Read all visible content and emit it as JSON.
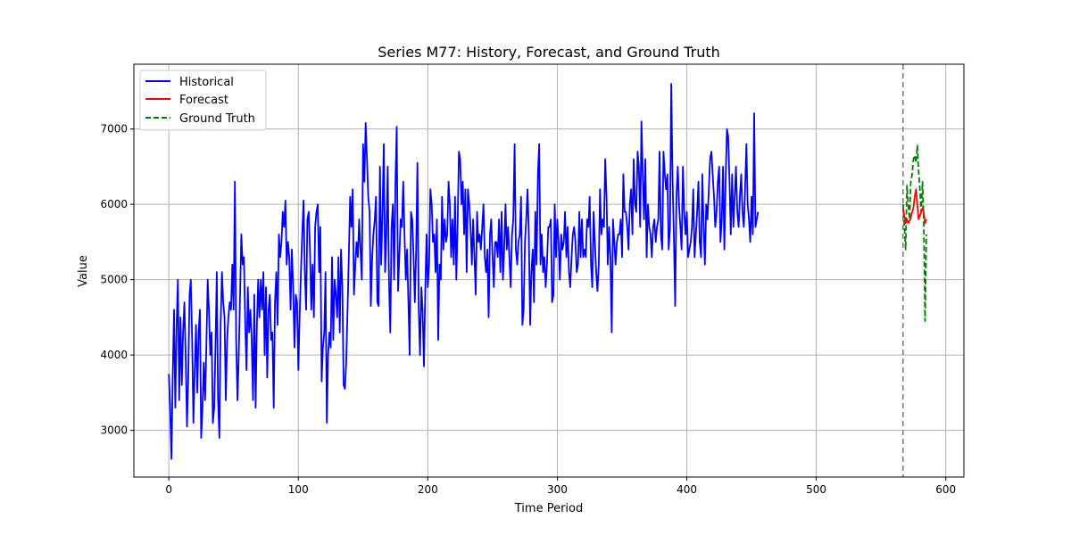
{
  "chart_data": {
    "type": "line",
    "title": "Series M77: History, Forecast, and Ground Truth",
    "xlabel": "Time Period",
    "ylabel": "Value",
    "xlim": [
      -27,
      614
    ],
    "ylim": [
      2380,
      7860
    ],
    "xticks": [
      0,
      100,
      200,
      300,
      400,
      500,
      600
    ],
    "yticks": [
      3000,
      4000,
      5000,
      6000,
      7000
    ],
    "grid": true,
    "legend_position": "top-left",
    "forecast_start": 567,
    "colors": {
      "historical": "#0000ff",
      "forecast": "#ff0000",
      "ground_truth": "#008000",
      "divider": "#808080",
      "grid": "#b0b0b0"
    },
    "series": [
      {
        "name": "Historical",
        "style": "solid",
        "color": "#0000ff",
        "x_start": 0,
        "values": [
          3750,
          3300,
          2620,
          3700,
          4600,
          3300,
          4400,
          5000,
          3400,
          4500,
          3600,
          4300,
          4700,
          4000,
          3050,
          3700,
          4800,
          5000,
          4200,
          3100,
          3800,
          4400,
          3500,
          4300,
          4600,
          2900,
          3300,
          3900,
          3400,
          4100,
          5000,
          4600,
          4000,
          4300,
          3100,
          3300,
          4100,
          5100,
          3400,
          2900,
          4400,
          5100,
          4700,
          4500,
          3400,
          4200,
          4500,
          4700,
          4600,
          5200,
          4600,
          6300,
          4200,
          3400,
          4000,
          4800,
          5600,
          5200,
          5300,
          4400,
          3800,
          4900,
          4300,
          4600,
          4200,
          3400,
          4800,
          3300,
          4400,
          5000,
          4500,
          5000,
          4600,
          5100,
          4000,
          4900,
          3700,
          4600,
          4800,
          4200,
          4300,
          3300,
          4700,
          5100,
          4400,
          5600,
          5300,
          5500,
          5900,
          5700,
          6050,
          5200,
          5500,
          5300,
          4600,
          5400,
          4900,
          4100,
          4800,
          4700,
          3800,
          4500,
          5100,
          5600,
          6050,
          5100,
          4600,
          5800,
          5900,
          5400,
          4600,
          5200,
          4500,
          5700,
          5900,
          6000,
          5100,
          5700,
          3650,
          4100,
          4300,
          5100,
          3100,
          4000,
          4300,
          4100,
          5300,
          4200,
          5000,
          4800,
          4500,
          5300,
          4300,
          5400,
          4900,
          3600,
          3550,
          3900,
          4600,
          5300,
          6100,
          5700,
          6200,
          4800,
          5200,
          5500,
          5300,
          5800,
          5400,
          5000,
          6800,
          6300,
          7080,
          6600,
          6100,
          5900,
          4650,
          5300,
          5600,
          5800,
          6100,
          4700,
          4650,
          6500,
          5200,
          5900,
          6800,
          5100,
          5600,
          6500,
          5000,
          4300,
          5700,
          6000,
          5000,
          6300,
          7030,
          4850,
          5300,
          5800,
          5700,
          6300,
          5600,
          5000,
          5400,
          4700,
          4000,
          5900,
          5800,
          5300,
          4700,
          5400,
          6550,
          4600,
          4000,
          4900,
          4600,
          3850,
          4800,
          5600,
          4900,
          5200,
          6200,
          6000,
          5500,
          5600,
          5100,
          5800,
          4200,
          5200,
          5000,
          6100,
          5400,
          5800,
          5500,
          5600,
          6300,
          6000,
          5300,
          5800,
          5200,
          6100,
          5000,
          5700,
          6700,
          6600,
          6000,
          6300,
          5600,
          6200,
          5100,
          6200,
          6000,
          5700,
          5200,
          5800,
          5300,
          4800,
          5900,
          5500,
          5600,
          5400,
          5700,
          6000,
          5300,
          5100,
          5400,
          4500,
          5600,
          5800,
          5300,
          4900,
          5500,
          5500,
          5300,
          5800,
          5100,
          5900,
          5000,
          5400,
          6000,
          5400,
          5700,
          5300,
          4900,
          5600,
          5800,
          6800,
          5400,
          5200,
          5500,
          5600,
          6100,
          4400,
          4600,
          5500,
          5800,
          6200,
          5600,
          4400,
          5100,
          5400,
          4700,
          5900,
          5200,
          6400,
          6800,
          5200,
          5600,
          5100,
          5300,
          4900,
          5200,
          5700,
          5700,
          5800,
          4700,
          4800,
          6000,
          5300,
          5800,
          5500,
          5000,
          5600,
          5400,
          5500,
          5900,
          5300,
          5700,
          5100,
          4900,
          5300,
          5600,
          5700,
          5500,
          5100,
          5200,
          5900,
          5300,
          5800,
          5300,
          5400,
          5300,
          5800,
          5700,
          6100,
          5200,
          4900,
          5900,
          5500,
          5100,
          4850,
          5200,
          6200,
          5600,
          5800,
          5700,
          6600,
          6100,
          5200,
          5700,
          5300,
          4300,
          5800,
          5500,
          5200,
          5500,
          5600,
          5600,
          5800,
          5300,
          6400,
          5900,
          5900,
          5700,
          5400,
          6000,
          6200,
          5600,
          6600,
          6000,
          5900,
          6700,
          6500,
          5700,
          7100,
          6400,
          5800,
          6600,
          5300,
          6000,
          5700,
          5600,
          5300,
          5700,
          5800,
          5500,
          5700,
          5800,
          6700,
          5600,
          5400,
          6700,
          6400,
          6200,
          6400,
          5400,
          5700,
          7600,
          6300,
          5600,
          4650,
          6100,
          6500,
          6000,
          5700,
          5400,
          6500,
          5900,
          5600,
          5900,
          5300,
          5400,
          5500,
          5700,
          6200,
          5300,
          5600,
          5900,
          6300,
          5500,
          5300,
          6400,
          5700,
          5200,
          6000,
          5800,
          6200,
          6600,
          6700,
          6400,
          6100,
          5700,
          5900,
          6300,
          6500,
          5500,
          5800,
          6500,
          5400,
          6300,
          7000,
          6900,
          6300,
          5600,
          6400,
          5700,
          6100,
          6500,
          5900,
          5700,
          6100,
          6400,
          5900,
          5700,
          6200,
          6800,
          6000,
          5800,
          5500,
          6100,
          5600,
          7210,
          5700,
          5800,
          5900
        ]
      },
      {
        "name": "Forecast",
        "style": "solid",
        "color": "#ff0000",
        "x": [
          567,
          568,
          569,
          570,
          571,
          572,
          573,
          574,
          575,
          576,
          577,
          578,
          579,
          580,
          581,
          582,
          583,
          584,
          585
        ],
        "values": [
          5950,
          5850,
          5750,
          5800,
          5750,
          5780,
          5820,
          5900,
          5950,
          6100,
          6200,
          6000,
          5800,
          5850,
          5900,
          5950,
          5900,
          5750,
          5800
        ]
      },
      {
        "name": "Ground Truth",
        "style": "dashed",
        "color": "#008000",
        "x": [
          567,
          568,
          569,
          570,
          571,
          572,
          573,
          574,
          575,
          576,
          577,
          578,
          579,
          580,
          581,
          582,
          583,
          584,
          585
        ],
        "values": [
          6000,
          5700,
          5400,
          6250,
          6000,
          5800,
          6300,
          6400,
          6600,
          6650,
          6550,
          6780,
          6450,
          6200,
          5900,
          6300,
          5800,
          4450,
          5600
        ]
      }
    ]
  }
}
